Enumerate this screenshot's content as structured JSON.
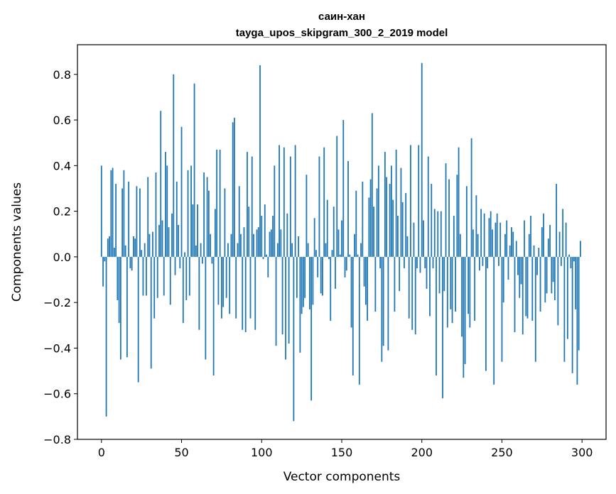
{
  "chart_data": {
    "type": "bar",
    "title": "саин-хан",
    "subtitle": "tayga_upos_skipgram_300_2_2019 model",
    "xlabel": "Vector components",
    "ylabel": "Components values",
    "xlim": [
      -15,
      315
    ],
    "ylim": [
      -0.8,
      0.93
    ],
    "xticks": [
      0,
      50,
      100,
      150,
      200,
      250,
      300
    ],
    "xtick_labels": [
      "0",
      "50",
      "100",
      "150",
      "200",
      "250",
      "300"
    ],
    "yticks": [
      -0.8,
      -0.6,
      -0.4,
      -0.2,
      0.0,
      0.2,
      0.4,
      0.6,
      0.8
    ],
    "ytick_labels": [
      "−0.8",
      "−0.6",
      "−0.4",
      "−0.2",
      "0.0",
      "0.2",
      "0.4",
      "0.6",
      "0.8"
    ],
    "grid": false,
    "bar_color": "#1f77b4",
    "values": [
      0.4,
      -0.13,
      -0.02,
      -0.7,
      0.08,
      0.09,
      0.38,
      0.39,
      0.04,
      0.32,
      -0.19,
      -0.29,
      -0.45,
      0.3,
      0.38,
      0.05,
      -0.44,
      0.33,
      -0.05,
      -0.06,
      0.09,
      0.08,
      0.31,
      -0.55,
      0.3,
      0.03,
      -0.17,
      0.06,
      -0.17,
      0.35,
      0.1,
      -0.49,
      0.11,
      -0.27,
      0.37,
      -0.18,
      0.14,
      0.64,
      0.16,
      -0.17,
      0.46,
      0.4,
      0.13,
      -0.21,
      0.19,
      0.8,
      -0.08,
      0.33,
      0.14,
      -0.05,
      0.57,
      -0.29,
      0.02,
      -0.19,
      0.38,
      -0.17,
      0.4,
      0.23,
      0.76,
      0.05,
      0.23,
      -0.32,
      0.06,
      -0.03,
      0.37,
      -0.45,
      0.35,
      0.29,
      0.1,
      -0.03,
      -0.52,
      0.21,
      0.47,
      -0.21,
      0.47,
      -0.27,
      -0.22,
      0.3,
      -0.18,
      0.06,
      -0.25,
      0.1,
      0.59,
      0.61,
      -0.27,
      0.06,
      0.31,
      0.1,
      -0.32,
      0.13,
      -0.33,
      0.46,
      0.22,
      -0.27,
      0.44,
      0.1,
      -0.32,
      0.12,
      0.13,
      0.84,
      0.18,
      -0.01,
      0.23,
      0.01,
      -0.09,
      0.11,
      0.12,
      0.18,
      0.4,
      -0.39,
      0.06,
      0.49,
      0.12,
      -0.34,
      0.48,
      -0.45,
      0.19,
      -0.38,
      0.44,
      0.06,
      -0.72,
      0.49,
      -0.18,
      0.09,
      -0.42,
      -0.25,
      -0.22,
      -0.18,
      0.36,
      0.06,
      -0.23,
      -0.63,
      -0.21,
      0.17,
      0.03,
      -0.09,
      0.44,
      -0.16,
      -0.17,
      0.48,
      0.06,
      0.25,
      -0.01,
      -0.28,
      0.03,
      0.22,
      -0.14,
      0.53,
      0.12,
      0.01,
      0.16,
      0.6,
      -0.09,
      -0.06,
      0.42,
      0.01,
      -0.31,
      -0.52,
      0.1,
      0.29,
      0.01,
      -0.56,
      0.06,
      0.33,
      -0.13,
      -0.21,
      -0.28,
      0.26,
      0.34,
      0.63,
      0.22,
      -0.24,
      0.3,
      0.4,
      -0.05,
      -0.46,
      -0.39,
      0.46,
      0.35,
      -0.41,
      0.32,
      0.4,
      0.25,
      -0.24,
      0.47,
      0.18,
      -0.15,
      0.39,
      0.24,
      -0.05,
      0.28,
      0.09,
      -0.27,
      0.49,
      -0.32,
      0.15,
      -0.34,
      -0.05,
      0.49,
      -0.07,
      0.85,
      0.16,
      -0.05,
      -0.14,
      0.44,
      -0.26,
      0.32,
      -0.05,
      0.21,
      -0.52,
      0.2,
      -0.16,
      0.2,
      -0.62,
      -0.15,
      0.41,
      -0.31,
      0.34,
      -0.23,
      -0.29,
      0.18,
      -0.24,
      0.36,
      0.48,
      0.1,
      -0.35,
      -0.53,
      -0.47,
      0.31,
      -0.25,
      -0.31,
      0.52,
      0.12,
      -0.28,
      0.27,
      0.1,
      -0.06,
      0.21,
      -0.04,
      0.19,
      -0.5,
      -0.05,
      0.17,
      0.2,
      0.12,
      -0.56,
      0.15,
      0.19,
      -0.04,
      0.15,
      -0.46,
      -0.2,
      0.1,
      0.16,
      -0.1,
      0.05,
      0.13,
      0.11,
      -0.33,
      0.07,
      -0.08,
      -0.18,
      -0.12,
      -0.34,
      0.16,
      -0.26,
      -0.27,
      0.1,
      0.18,
      -0.28,
      0.05,
      -0.46,
      -0.08,
      0.04,
      -0.24,
      0.13,
      0.19,
      -0.2,
      -0.16,
      0.08,
      0.14,
      -0.16,
      -0.11,
      -0.19,
      0.32,
      -0.3,
      0.11,
      -0.04,
      0.21,
      -0.46,
      0.15,
      -0.36,
      0.01,
      -0.05,
      -0.51,
      -0.02,
      -0.23,
      -0.56,
      -0.41,
      0.07
    ]
  }
}
